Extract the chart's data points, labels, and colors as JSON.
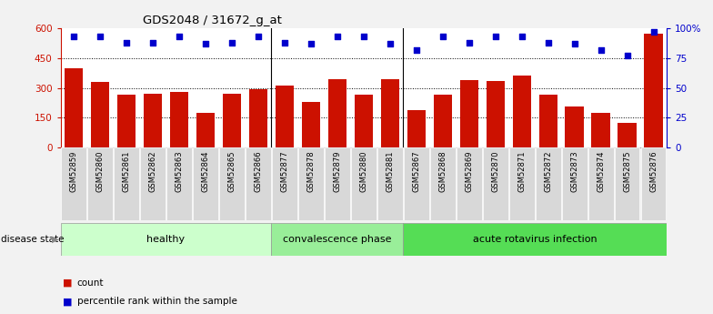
{
  "title": "GDS2048 / 31672_g_at",
  "samples": [
    "GSM52859",
    "GSM52860",
    "GSM52861",
    "GSM52862",
    "GSM52863",
    "GSM52864",
    "GSM52865",
    "GSM52866",
    "GSM52877",
    "GSM52878",
    "GSM52879",
    "GSM52880",
    "GSM52881",
    "GSM52867",
    "GSM52868",
    "GSM52869",
    "GSM52870",
    "GSM52871",
    "GSM52872",
    "GSM52873",
    "GSM52874",
    "GSM52875",
    "GSM52876"
  ],
  "counts": [
    400,
    330,
    265,
    270,
    280,
    175,
    270,
    295,
    310,
    230,
    345,
    265,
    345,
    190,
    265,
    340,
    335,
    360,
    265,
    205,
    175,
    125,
    575
  ],
  "percentiles": [
    93,
    93,
    88,
    88,
    93,
    87,
    88,
    93,
    88,
    87,
    93,
    93,
    87,
    82,
    93,
    88,
    93,
    93,
    88,
    87,
    82,
    77,
    97
  ],
  "groups": [
    {
      "label": "healthy",
      "start": 0,
      "end": 8,
      "color": "#ccffcc"
    },
    {
      "label": "convalescence phase",
      "start": 8,
      "end": 13,
      "color": "#99ee99"
    },
    {
      "label": "acute rotavirus infection",
      "start": 13,
      "end": 23,
      "color": "#55dd55"
    }
  ],
  "bar_color": "#cc1100",
  "dot_color": "#0000cc",
  "left_ylim": [
    0,
    600
  ],
  "right_ylim": [
    0,
    100
  ],
  "left_yticks": [
    0,
    150,
    300,
    450,
    600
  ],
  "right_yticks": [
    0,
    25,
    50,
    75,
    100
  ],
  "right_yticklabels": [
    "0",
    "25",
    "50",
    "75",
    "100%"
  ],
  "left_yticklabels": [
    "0",
    "150",
    "300",
    "450",
    "600"
  ],
  "legend_count_label": "count",
  "legend_pct_label": "percentile rank within the sample",
  "disease_state_label": "disease state",
  "fig_bg_color": "#f2f2f2",
  "plot_bg_color": "#ffffff",
  "tick_bg_color": "#d8d8d8"
}
